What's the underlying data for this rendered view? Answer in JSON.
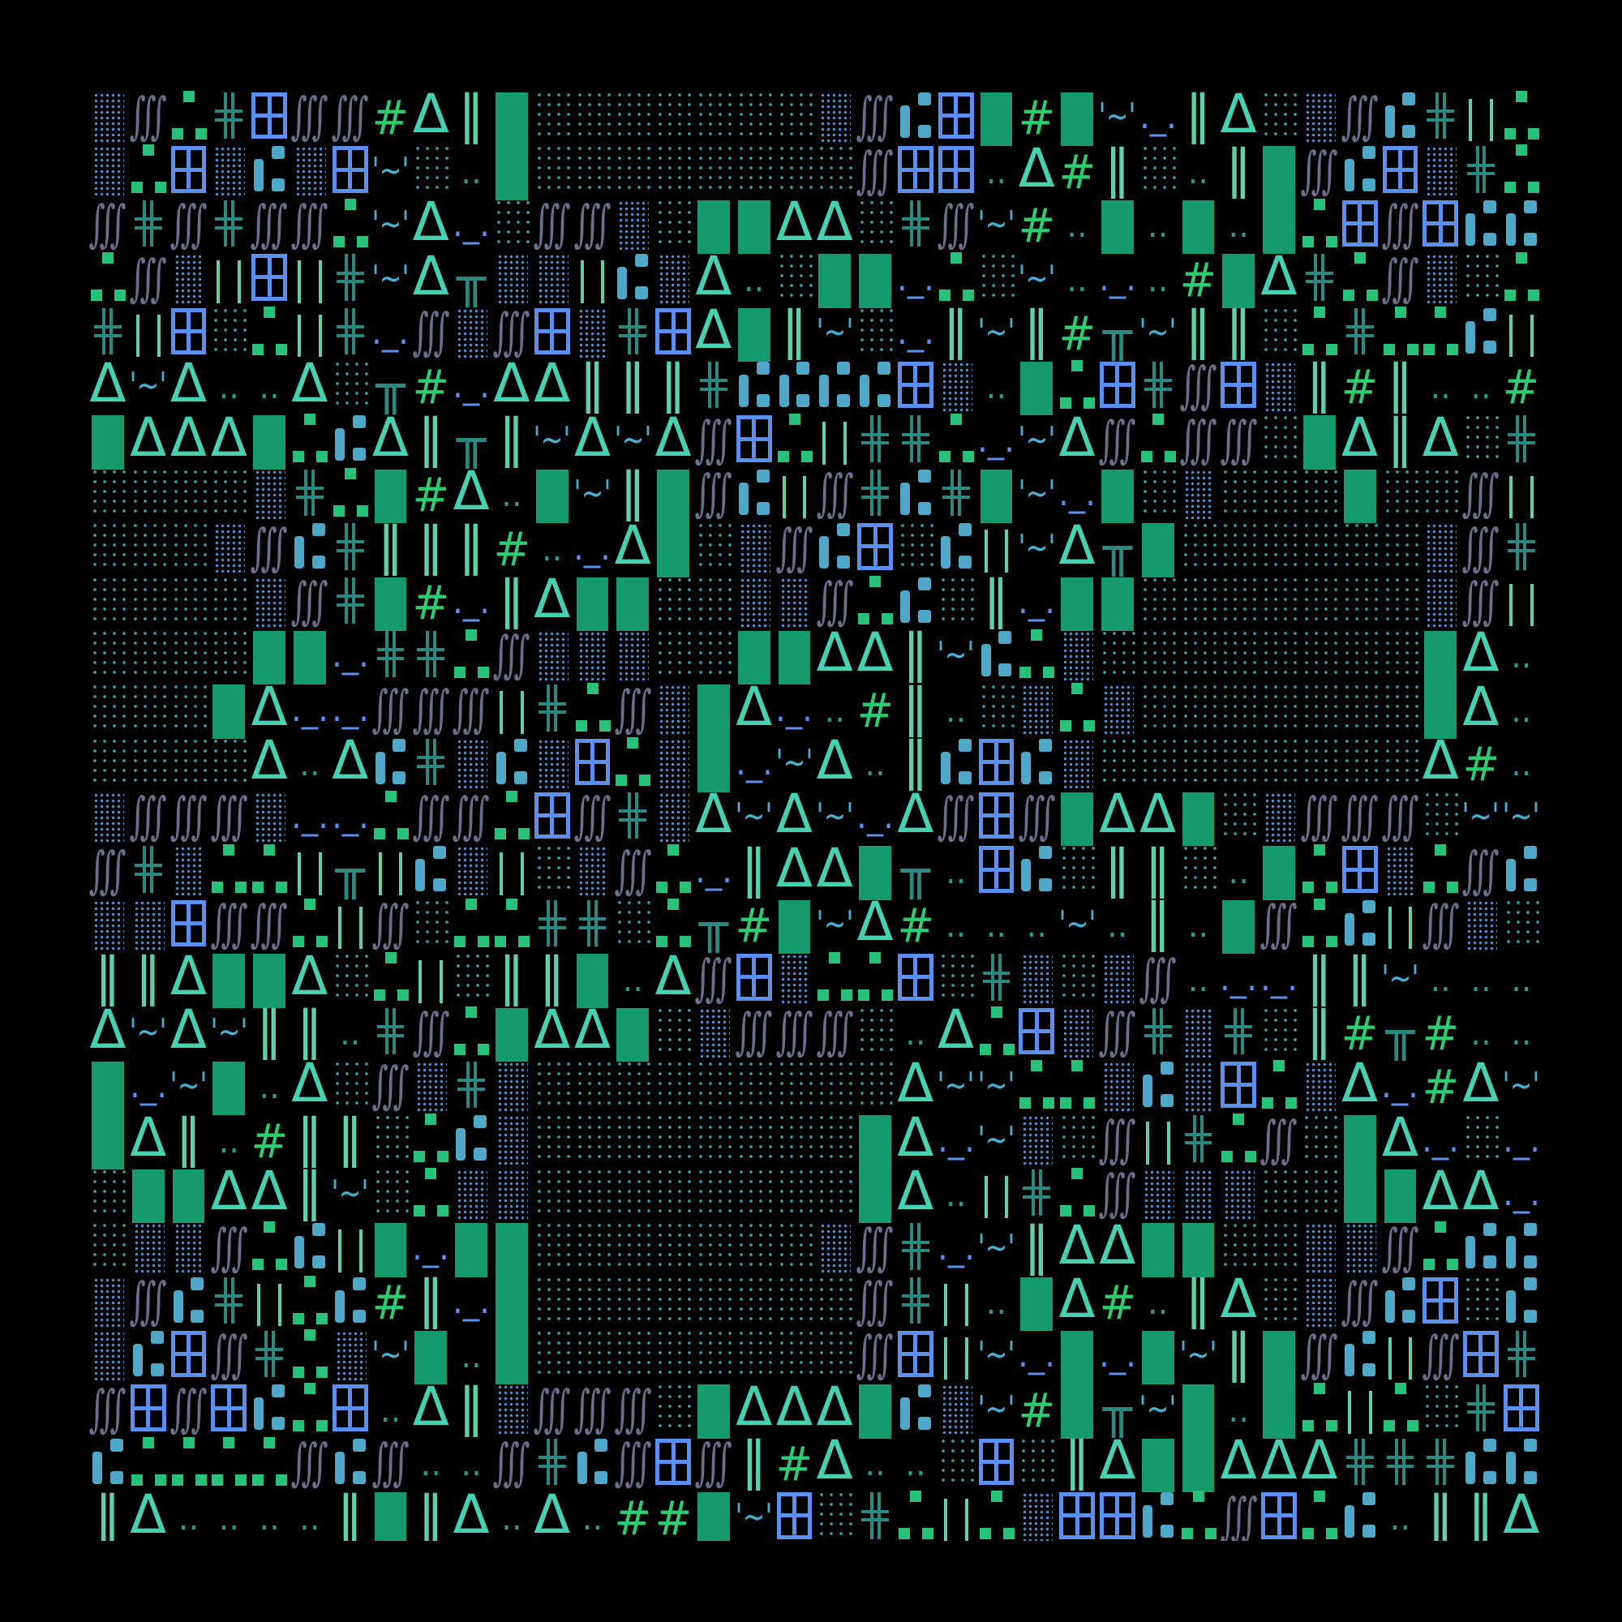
{
  "glyphs": {
    "D": {
      "name": "dense-dots",
      "char": "",
      "color": "#4f8fd0"
    },
    "S": {
      "name": "sparse-dots",
      "char": "",
      "color": "#38a0a8"
    },
    "I": {
      "name": "triple-integral",
      "char": "∭",
      "color": "#6b6f8a"
    },
    "Q": {
      "name": "green-squares",
      "char": "",
      "color": "#26c27a"
    },
    "X": {
      "name": "double-cross",
      "char": "",
      "color": "#2a8a80"
    },
    "W": {
      "name": "window",
      "char": "",
      "color": "#5b8ff0"
    },
    "H": {
      "name": "hash",
      "char": "#",
      "color": "#2ecc71"
    },
    "T": {
      "name": "delta",
      "char": "Δ",
      "color": "#48d1b0"
    },
    "P": {
      "name": "double-bar",
      "char": "‖",
      "color": "#5fd0a8"
    },
    "B": {
      "name": "block",
      "char": "",
      "color": "#159a6e"
    },
    "Z": {
      "name": "tilde-quote",
      "char": "'~'",
      "color": "#4aaed0"
    },
    "O": {
      "name": "double-dot",
      "char": "..",
      "color": "#2a9a8a"
    },
    "U": {
      "name": "dot-underscore",
      "char": "._.",
      "color": "#5b8ff0"
    },
    "J": {
      "name": "tee-bar",
      "char": "╥",
      "color": "#2a8a80"
    },
    "C": {
      "name": "capsule",
      "char": "",
      "color": "#4fa8c8"
    },
    "L": {
      "name": "thin-bars",
      "char": "",
      "color": "#5fd0a8"
    }
  },
  "rows": [
    "DIQXWIIHTPBSSSSSSSDICWBHBZUPTSDICXLQ",
    "DQWDCDWZSOBSSSSSSSSIWWOTHPSOPBICWDXQ",
    "IXIXIIQZTUSIIDSBBTTSXIZHOBOBOBQWIWCC",
    "QIDLWLXZTJDDLCDTOSBBUQSZOUOHBTXQIDSQ",
    "XLWSQLXUIDIWDXWTBPZSUPZPHJZPPSQXQQCL",
    "TZTOOTSJHUTTPPPXCCCCWDOBQWXIWDPHPOOH",
    "BTTTBQCTPJPZTZTIWQLXXQUZTIQIISBTPTSX",
    "SSSSDXQBHTOBZPBICLIXCXBZUBSDSSSBSSIL",
    "SSSDICXPPPHOUTBSDICWSCLZTJBSSSSSSDIX",
    "SSSSDIXBHUPTBBSSDDIQCSPUBBSSSSSSSDIL",
    "SSSSBBUXXQIDDDSSBBTTPZCQDSSSSSSSSBTO",
    "SSSBTUUIIILXQIDBTUOHPOSDQDSSSSSSSBTO",
    "SSSSTOTCXDCDWQDBUZTOPCWCDSSSSSSSSTHO",
    "DIIIDUUQIIQWIXDTZTZUTIWIBTTBSDIIISZZ",
    "IXDQQLJLCDLSDIQUPTTBJOWCSPPSOBQWDQIC",
    "DDWIIQLISQQXXSQJHBZTHOOOZOPOBIQCLIDS",
    "PPTBBTSQLSPPBOTIWDQQWSXDSDIOUUPPZOOO",
    "TZTZPPOXIQBTTBSDIIISOTQWDIXDXSPHJHOO",
    "BUZBOTSIDXDSSSSSSSSSTZZQQDCDWQDTUHTZ",
    "BTPOHPPSQCDSSSSSSSSBTUZDSILXQISBTUSU",
    "SBBTTPZSQDDSSSSSSSSBTOLXQIDDDSSBBTTU",
    "SDDIQCLBUBBSSSSSSSDIXUZPTTBBSSDDIQCC",
    "DICXLQCHPUBSSSSSSSSIXLOBTHOPTSDICWSC",
    "DCWIXQDZBOBSSSSSSSSIWLZUBUBZPBICLIWX",
    "IWIWCQWOTPDIIISBTTTBCDZHBJZBOBQLQSXW",
    "CQQQQICIOOIXCIWIPHTOOSWSPTBBTTTXXXCC",
    "PTOOOOPBPTOTOHHBZWSXQLQDWWCQIWQCOPPT"
  ]
}
